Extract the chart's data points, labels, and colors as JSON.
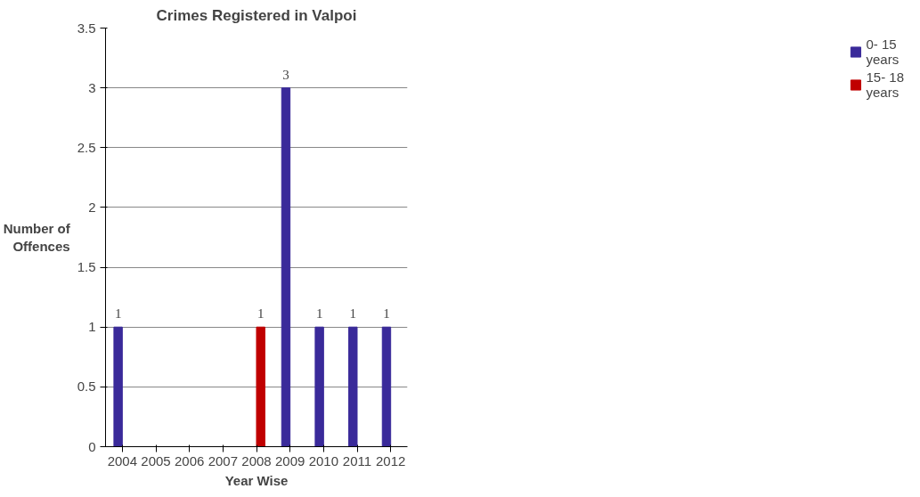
{
  "chart_data": {
    "type": "bar",
    "title": "Crimes Registered in Valpoi",
    "xlabel": "Year Wise",
    "ylabel": "Number of Offences",
    "categories": [
      "2004",
      "2005",
      "2006",
      "2007",
      "2008",
      "2009",
      "2010",
      "2011",
      "2012"
    ],
    "series": [
      {
        "name": "0- 15 years",
        "color": "#3a2a9a",
        "values": [
          1,
          0,
          0,
          0,
          0,
          3,
          1,
          1,
          1
        ],
        "value_labels": [
          "1",
          null,
          null,
          null,
          null,
          "3",
          "1",
          "1",
          "1"
        ]
      },
      {
        "name": "15- 18 years",
        "color": "#c00000",
        "values": [
          0,
          0,
          0,
          0,
          1,
          0,
          0,
          0,
          0
        ],
        "value_labels": [
          null,
          null,
          null,
          null,
          "1",
          null,
          null,
          null,
          null
        ]
      }
    ],
    "ylim": [
      0,
      3.5
    ],
    "yticks": [
      0,
      0.5,
      1,
      1.5,
      2,
      2.5,
      3,
      3.5
    ],
    "grid": "y",
    "legend": "right"
  }
}
